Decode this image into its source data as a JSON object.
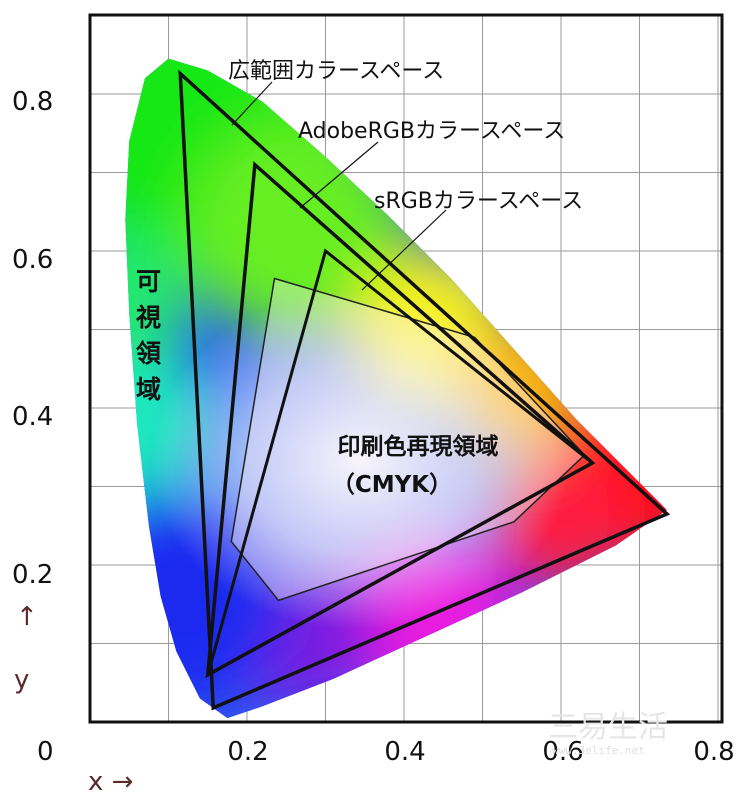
{
  "chart_data": {
    "type": "diagram",
    "xlim": [
      0,
      0.8
    ],
    "ylim": [
      0,
      0.9
    ],
    "grid": true,
    "x_ticks": [
      {
        "value": 0.2,
        "label": "0.2"
      },
      {
        "value": 0.4,
        "label": "0.4"
      },
      {
        "value": 0.6,
        "label": "0.6"
      },
      {
        "value": 0.8,
        "label": "0.8"
      }
    ],
    "y_ticks": [
      {
        "value": 0.2,
        "label": "0.2"
      },
      {
        "value": 0.4,
        "label": "0.4"
      },
      {
        "value": 0.6,
        "label": "0.6"
      },
      {
        "value": 0.8,
        "label": "0.8"
      }
    ],
    "origin_label": "0",
    "x_axis_label": "x →",
    "y_axis_label_arrow": "↑",
    "y_axis_label_letter": "y",
    "visible_region_label": [
      "可",
      "視",
      "領",
      "域"
    ],
    "visible_region_locus": [
      [
        0.175,
        0.005
      ],
      [
        0.14,
        0.03
      ],
      [
        0.11,
        0.09
      ],
      [
        0.09,
        0.16
      ],
      [
        0.075,
        0.25
      ],
      [
        0.06,
        0.38
      ],
      [
        0.05,
        0.52
      ],
      [
        0.045,
        0.64
      ],
      [
        0.05,
        0.74
      ],
      [
        0.07,
        0.82
      ],
      [
        0.1,
        0.845
      ],
      [
        0.15,
        0.83
      ],
      [
        0.22,
        0.79
      ],
      [
        0.3,
        0.72
      ],
      [
        0.38,
        0.645
      ],
      [
        0.46,
        0.565
      ],
      [
        0.54,
        0.475
      ],
      [
        0.62,
        0.385
      ],
      [
        0.69,
        0.315
      ],
      [
        0.735,
        0.27
      ],
      [
        0.67,
        0.225
      ],
      [
        0.55,
        0.165
      ],
      [
        0.43,
        0.11
      ],
      [
        0.31,
        0.055
      ],
      [
        0.22,
        0.02
      ]
    ],
    "gamuts": [
      {
        "name": "広範囲カラースペース",
        "vertices": [
          [
            0.735,
            0.265
          ],
          [
            0.115,
            0.826
          ],
          [
            0.157,
            0.018
          ]
        ],
        "label_anchor": [
          0.2,
          0.875
        ],
        "leader_to": [
          0.18,
          0.76
        ]
      },
      {
        "name": "AdobeRGBカラースペース",
        "vertices": [
          [
            0.64,
            0.33
          ],
          [
            0.21,
            0.71
          ],
          [
            0.15,
            0.06
          ]
        ],
        "label_anchor": [
          0.28,
          0.77
        ],
        "leader_to": [
          0.265,
          0.64
        ]
      },
      {
        "name": "sRGBカラースペース",
        "vertices": [
          [
            0.64,
            0.33
          ],
          [
            0.3,
            0.6
          ],
          [
            0.15,
            0.06
          ]
        ],
        "label_anchor": [
          0.37,
          0.67
        ],
        "leader_to": [
          0.34,
          0.545
        ]
      }
    ],
    "cmyk_region": {
      "name": [
        "印刷色再現領域",
        "（CMYK）"
      ],
      "vertices": [
        [
          0.235,
          0.565
        ],
        [
          0.49,
          0.49
        ],
        [
          0.63,
          0.34
        ],
        [
          0.54,
          0.255
        ],
        [
          0.24,
          0.155
        ],
        [
          0.18,
          0.23
        ]
      ]
    },
    "watermark": {
      "main": "三易生活",
      "sub": "www.3elife.net"
    }
  }
}
